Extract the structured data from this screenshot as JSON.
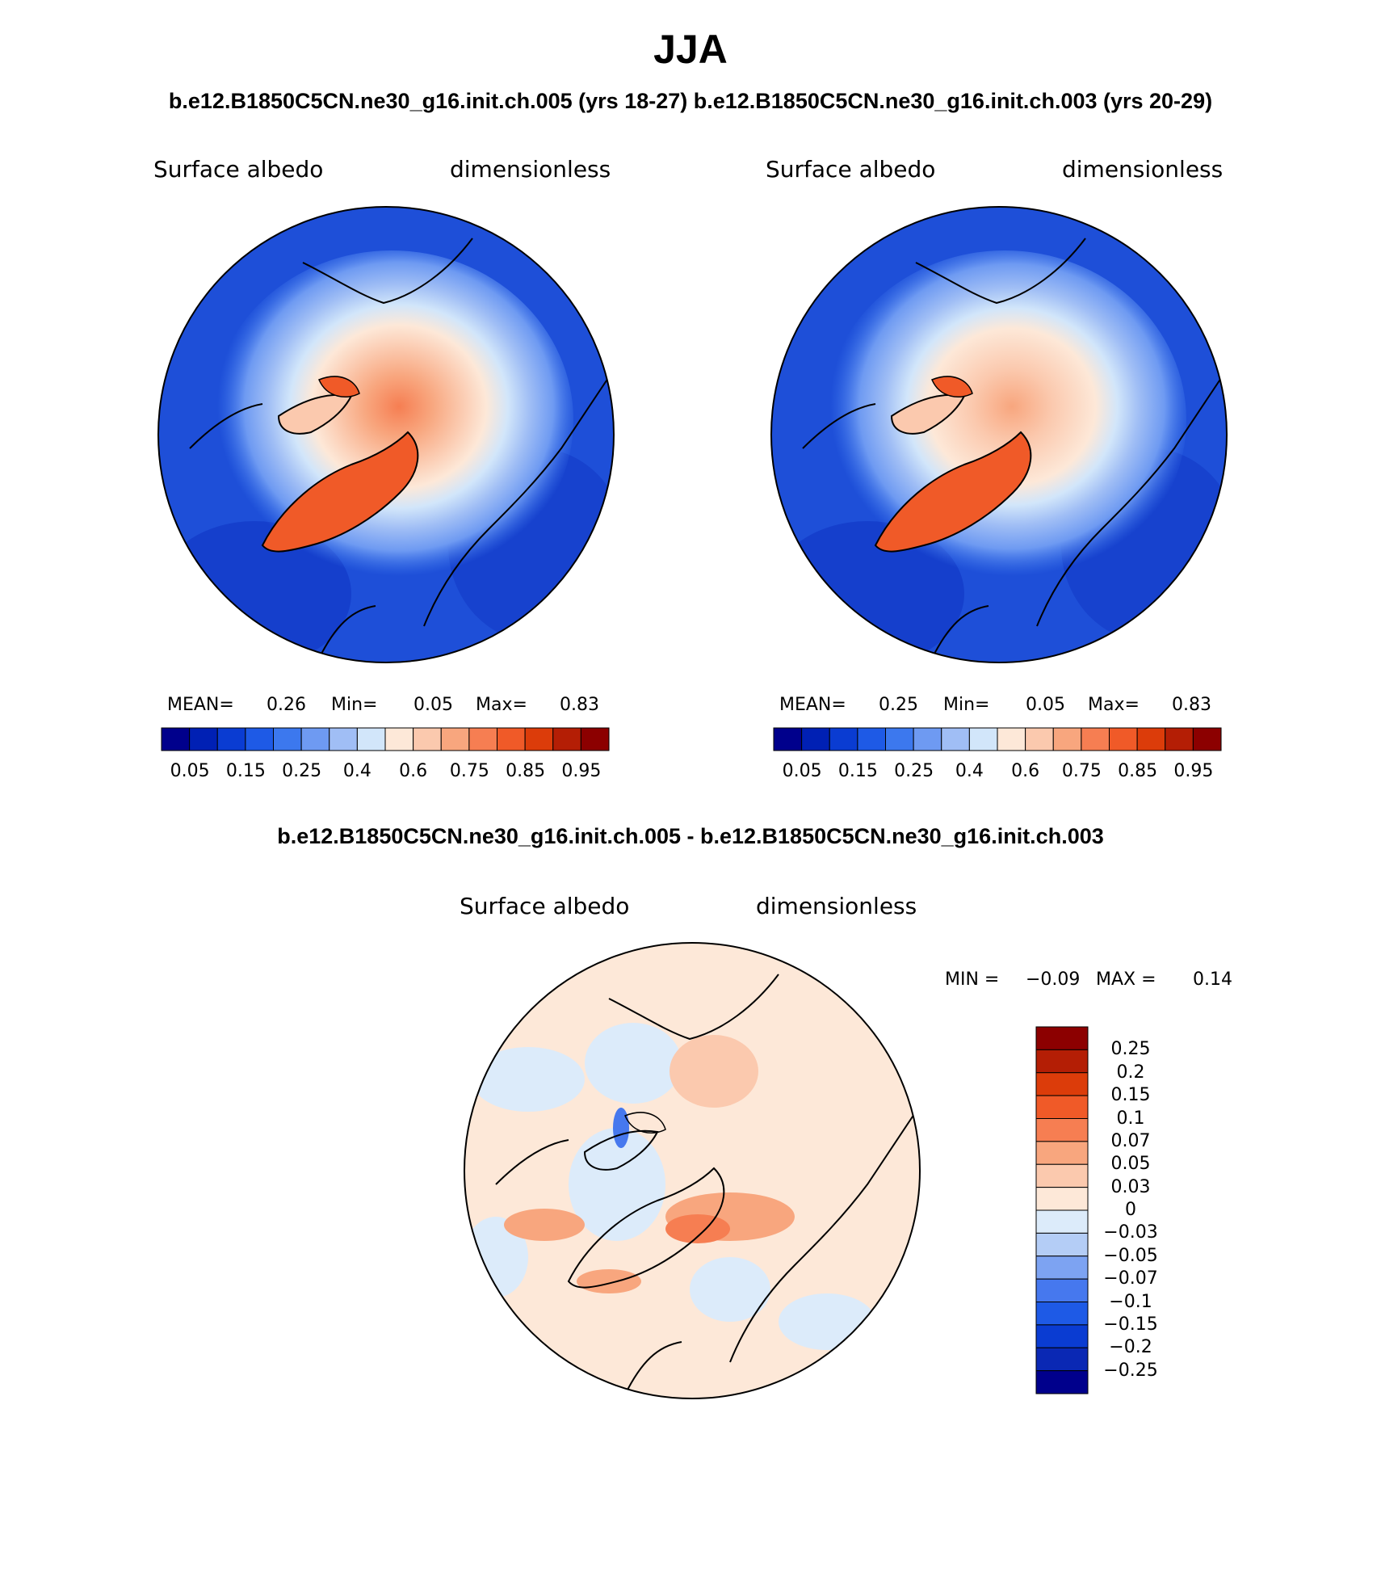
{
  "title": "JJA",
  "subtitle_top": "b.e12.B1850C5CN.ne30_g16.init.ch.005 (yrs 18-27) b.e12.B1850C5CN.ne30_g16.init.ch.003 (yrs 20-29)",
  "subtitle_diff": "b.e12.B1850C5CN.ne30_g16.init.ch.005 - b.e12.B1850C5CN.ne30_g16.init.ch.003",
  "panels": [
    {
      "variable": "Surface albedo",
      "units": "dimensionless",
      "mean_label": "MEAN=",
      "mean": "0.26",
      "min_label": "Min=",
      "min": "0.05",
      "max_label": "Max=",
      "max": "0.83"
    },
    {
      "variable": "Surface albedo",
      "units": "dimensionless",
      "mean_label": "MEAN=",
      "mean": "0.25",
      "min_label": "Min=",
      "min": "0.05",
      "max_label": "Max=",
      "max": "0.83"
    }
  ],
  "diff_panel": {
    "variable": "Surface albedo",
    "units": "dimensionless",
    "min_label": "MIN =",
    "min": "−0.09",
    "max_label": "MAX =",
    "max": "0.14"
  },
  "colorbar_abs": {
    "colors": [
      "#00008c",
      "#0020b4",
      "#0a3cd2",
      "#1e5ae6",
      "#3c78ee",
      "#6e9af2",
      "#a0bef5",
      "#d2e6fa",
      "#fde8d8",
      "#fbc9ae",
      "#f8a67e",
      "#f67e52",
      "#f05a28",
      "#dc3c0a",
      "#b41e05",
      "#8c0000"
    ],
    "labels": [
      "0.05",
      "0.15",
      "0.25",
      "0.4",
      "0.6",
      "0.75",
      "0.85",
      "0.95"
    ]
  },
  "colorbar_diff": {
    "colors": [
      "#00008c",
      "#0a28b4",
      "#0a3cd2",
      "#1e5ae6",
      "#4678ee",
      "#7da3f2",
      "#b4cdf6",
      "#dcebfa",
      "#fde8d8",
      "#fbc9ae",
      "#f8a67e",
      "#f67e52",
      "#f05a28",
      "#dc3c0a",
      "#b41e05",
      "#8c0000"
    ],
    "labels_top_to_bottom": [
      "0.25",
      "0.2",
      "0.15",
      "0.1",
      "0.07",
      "0.05",
      "0.03",
      "0",
      "−0.03",
      "−0.05",
      "−0.07",
      "−0.1",
      "−0.15",
      "−0.2",
      "−0.25"
    ]
  },
  "colors": {
    "ocean_abs": "#1e4fd8",
    "ocean_abs_deep": "#0f36c4",
    "land_outline": "#000000",
    "diff_background": "#fde8d8"
  }
}
